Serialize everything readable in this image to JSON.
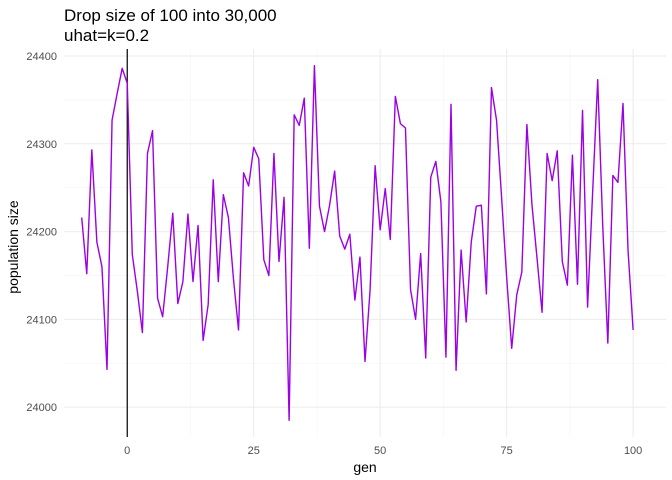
{
  "chart_data": {
    "type": "line",
    "title": "Drop size of 100 into 30,000",
    "subtitle": "uhat=k=0.2",
    "xlabel": "gen",
    "ylabel": "population size",
    "xlim": [
      -12.5,
      106.5
    ],
    "ylim": [
      23966,
      24408
    ],
    "x_ticks": [
      0,
      25,
      50,
      75,
      100
    ],
    "y_ticks": [
      24000,
      24100,
      24200,
      24300,
      24400
    ],
    "x_tick_labels": [
      "0",
      "25",
      "50",
      "75",
      "100"
    ],
    "y_tick_labels": [
      "24000",
      "24100",
      "24200",
      "24300",
      "24400"
    ],
    "grid": true,
    "vline_x": 0,
    "colors": {
      "line": "#9b00e6",
      "vline": "#000000",
      "grid_major": "#ebebeb",
      "grid_minor": "#f5f5f5"
    },
    "series": [
      {
        "x": [
          -9,
          -8,
          -7,
          -6,
          -5,
          -4,
          -3,
          -2,
          -1,
          0,
          1,
          2,
          3,
          4,
          5,
          6,
          7,
          8,
          9,
          10,
          11,
          12,
          13,
          14,
          15,
          16,
          17,
          18,
          19,
          20,
          21,
          22,
          23,
          24,
          25,
          26,
          27,
          28,
          29,
          30,
          31,
          32,
          33,
          34,
          35,
          36,
          37,
          38,
          39,
          40,
          41,
          42,
          43,
          44,
          45,
          46,
          47,
          48,
          49,
          50,
          51,
          52,
          53,
          54,
          55,
          56,
          57,
          58,
          59,
          60,
          61,
          62,
          63,
          64,
          65,
          66,
          67,
          68,
          69,
          70,
          71,
          72,
          73,
          74,
          75,
          76,
          77,
          78,
          79,
          80,
          81,
          82,
          83,
          84,
          85,
          86,
          87,
          88,
          89,
          90,
          91,
          92,
          93,
          94,
          95,
          96,
          97,
          98,
          99,
          100
        ],
        "values": [
          24216,
          24152,
          24293,
          24188,
          24160,
          24043,
          24327,
          24357,
          24386,
          24369,
          24174,
          24132,
          24085,
          24289,
          24315,
          24124,
          24103,
          24160,
          24221,
          24118,
          24143,
          24220,
          24143,
          24207,
          24076,
          24117,
          24259,
          24143,
          24242,
          24216,
          24146,
          24088,
          24267,
          24252,
          24296,
          24283,
          24168,
          24150,
          24289,
          24166,
          24239,
          23985,
          24333,
          24321,
          24352,
          24181,
          24389,
          24229,
          24200,
          24230,
          24269,
          24195,
          24180,
          24197,
          24122,
          24171,
          24052,
          24133,
          24275,
          24202,
          24249,
          24191,
          24354,
          24323,
          24318,
          24134,
          24100,
          24175,
          24056,
          24262,
          24280,
          24234,
          24057,
          24345,
          24042,
          24179,
          24097,
          24188,
          24229,
          24230,
          24129,
          24364,
          24327,
          24239,
          24148,
          24067,
          24128,
          24154,
          24322,
          24231,
          24170,
          24108,
          24289,
          24258,
          24292,
          24166,
          24139,
          24287,
          24140,
          24338,
          24114,
          24245,
          24373,
          24206,
          24073,
          24264,
          24256,
          24346,
          24178,
          24088
        ]
      }
    ]
  }
}
